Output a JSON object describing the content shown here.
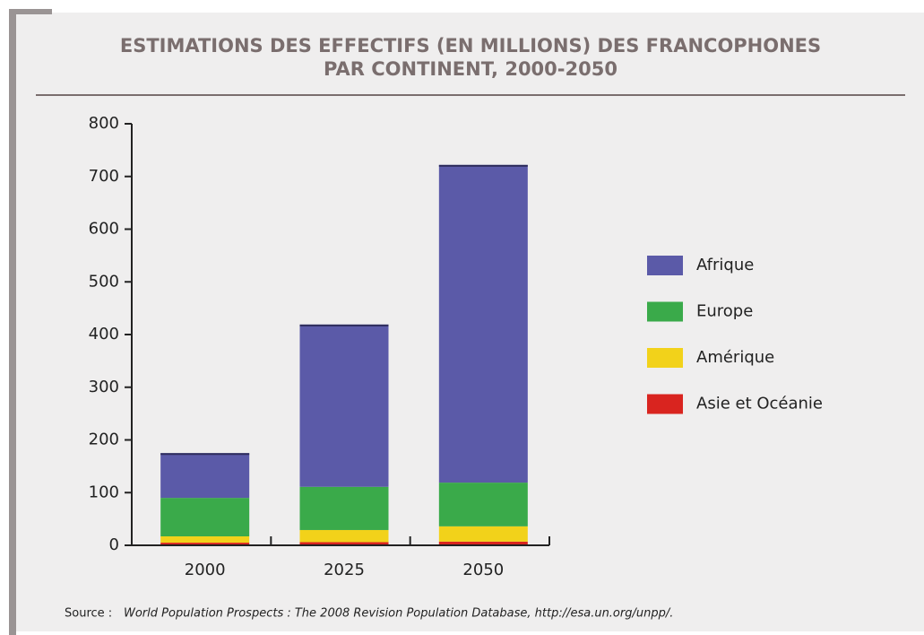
{
  "chart_data": {
    "type": "stacked_bar",
    "title": [
      "ESTIMATIONS DES EFFECTIFS (EN MILLIONS) DES FRANCOPHONES",
      "PAR CONTINENT, 2000-2050"
    ],
    "categories": [
      "2000",
      "2025",
      "2050"
    ],
    "series": [
      {
        "name": "Asie et Océanie",
        "color": "#d9241f",
        "values": [
          5,
          6,
          7
        ]
      },
      {
        "name": "Amérique",
        "color": "#f2d21a",
        "values": [
          12,
          23,
          29
        ]
      },
      {
        "name": "Europe",
        "color": "#3aaa4a",
        "values": [
          73,
          82,
          83
        ]
      },
      {
        "name": "Afrique",
        "color": "#5b5aa8",
        "values": [
          85,
          308,
          603
        ]
      }
    ],
    "ylim": [
      0,
      800
    ],
    "yticks": [
      0,
      100,
      200,
      300,
      400,
      500,
      600,
      700,
      800
    ],
    "source": {
      "label": "Source :",
      "text": "World Population Prospects : The 2008 Revision Population Database, http://esa.un.org/unpp/."
    }
  }
}
